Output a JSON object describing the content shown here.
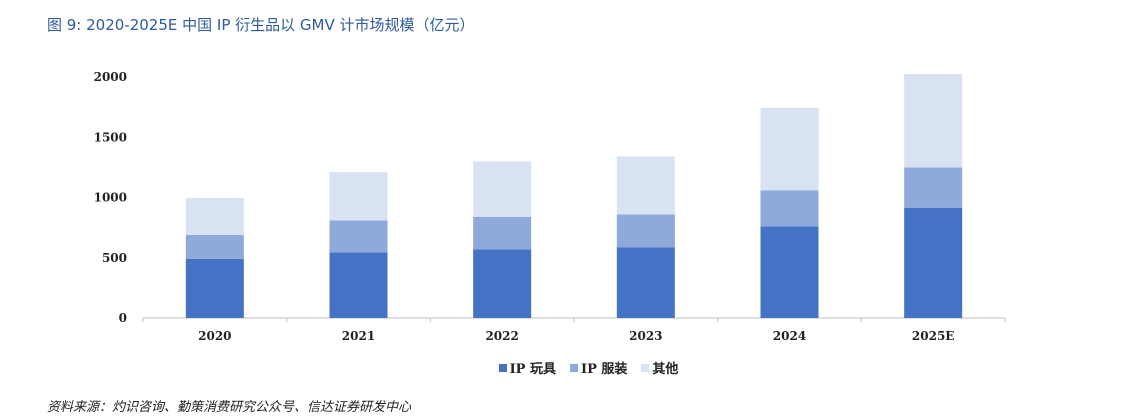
{
  "figure": {
    "title": "图 9:  2020-2025E 中国 IP 衍生品以 GMV 计市场规模（亿元）",
    "source": "资料来源：灼识咨询、勤策消费研究公众号、信达证券研发中心"
  },
  "chart_data": {
    "type": "bar",
    "stacked": true,
    "categories": [
      "2020",
      "2021",
      "2022",
      "2023",
      "2024",
      "2025E"
    ],
    "series": [
      {
        "name": "IP 玩具",
        "color": "#4472c4",
        "values": [
          490,
          545,
          570,
          585,
          760,
          915
        ]
      },
      {
        "name": "IP 服装",
        "color": "#8eaadb",
        "values": [
          200,
          265,
          270,
          275,
          300,
          335
        ]
      },
      {
        "name": "其他",
        "color": "#d9e2f3",
        "values": [
          305,
          400,
          460,
          480,
          685,
          775
        ]
      }
    ],
    "ylim": [
      0,
      2000
    ],
    "yticks": [
      "0",
      "500",
      "1000",
      "1500",
      "2000"
    ],
    "grid": false,
    "legend_position": "bottom",
    "title": "",
    "xlabel": "",
    "ylabel": ""
  }
}
